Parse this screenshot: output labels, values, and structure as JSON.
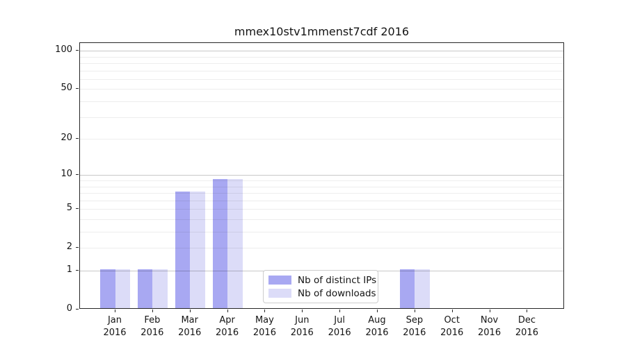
{
  "chart_data": {
    "type": "bar",
    "title": "mmex10stv1mmenst7cdf 2016",
    "year": "2016",
    "categories": [
      "Jan",
      "Feb",
      "Mar",
      "Apr",
      "May",
      "Jun",
      "Jul",
      "Aug",
      "Sep",
      "Oct",
      "Nov",
      "Dec"
    ],
    "series": [
      {
        "name": "Nb of distinct IPs",
        "color": "#a8a8f2",
        "values": [
          1,
          1,
          7,
          9,
          0,
          0,
          0,
          0,
          1,
          0,
          0,
          0
        ]
      },
      {
        "name": "Nb of downloads",
        "color": "#dcdcf8",
        "values": [
          1,
          1,
          7,
          9,
          0,
          0,
          0,
          0,
          1,
          0,
          0,
          0
        ]
      }
    ],
    "y_scale": "log10(1+v)",
    "ylim": [
      0,
      119
    ],
    "y_ticks": [
      0,
      1,
      2,
      5,
      10,
      20,
      50,
      100
    ],
    "y_major_gridlines": [
      1,
      10,
      100
    ],
    "y_minor_gridlines": [
      2,
      3,
      4,
      5,
      6,
      7,
      8,
      9,
      20,
      30,
      40,
      50,
      60,
      70,
      80,
      90
    ],
    "grid": "horizontal",
    "legend_position": "lower-center",
    "xlabel": "",
    "ylabel": ""
  }
}
